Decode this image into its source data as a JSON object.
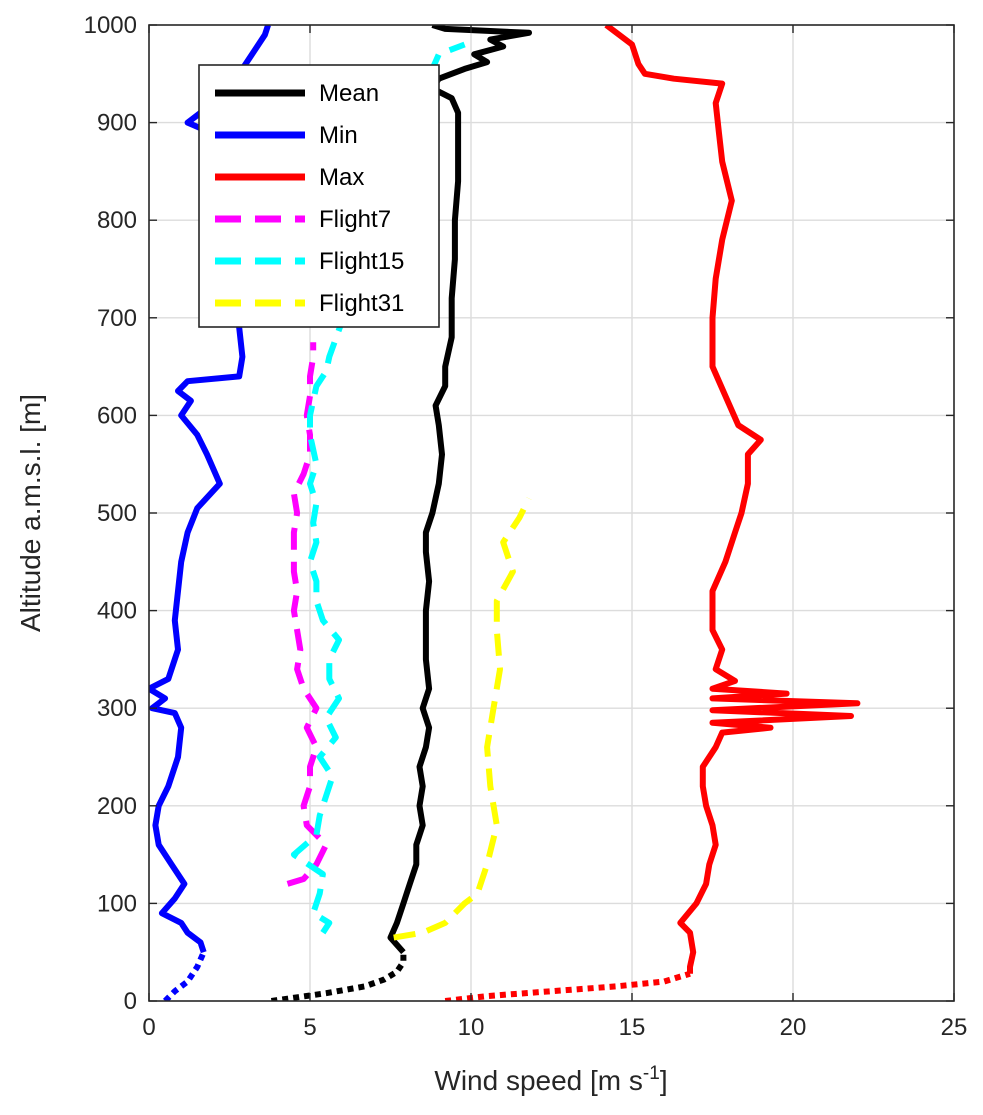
{
  "chart_data": {
    "type": "line",
    "xlabel": "Wind speed [m s",
    "xlabel_sup": "-1",
    "xlabel_end": "]",
    "ylabel": "Altitude a.m.s.l. [m]",
    "xlim": [
      0,
      25
    ],
    "ylim": [
      0,
      1000
    ],
    "xticks": [
      0,
      5,
      10,
      15,
      20,
      25
    ],
    "yticks": [
      0,
      100,
      200,
      300,
      400,
      500,
      600,
      700,
      800,
      900,
      1000
    ],
    "xtick_labels": [
      "0",
      "5",
      "10",
      "15",
      "20",
      "25"
    ],
    "ytick_labels": [
      "0",
      "100",
      "200",
      "300",
      "400",
      "500",
      "600",
      "700",
      "800",
      "900",
      "1000"
    ],
    "grid": true,
    "legend_position": "top-left",
    "series": [
      {
        "name": "Mean",
        "color": "#000000",
        "style": "solid",
        "near_ground_dotted": [
          [
            3.8,
            0
          ],
          [
            5.5,
            8
          ],
          [
            6.7,
            15
          ],
          [
            7.3,
            22
          ],
          [
            7.7,
            30
          ],
          [
            7.9,
            40
          ],
          [
            7.9,
            50
          ]
        ],
        "points": [
          [
            7.9,
            50
          ],
          [
            7.5,
            65
          ],
          [
            7.7,
            80
          ],
          [
            7.9,
            100
          ],
          [
            8.1,
            120
          ],
          [
            8.3,
            140
          ],
          [
            8.3,
            160
          ],
          [
            8.5,
            180
          ],
          [
            8.4,
            200
          ],
          [
            8.5,
            220
          ],
          [
            8.4,
            240
          ],
          [
            8.6,
            260
          ],
          [
            8.7,
            280
          ],
          [
            8.5,
            300
          ],
          [
            8.7,
            320
          ],
          [
            8.6,
            350
          ],
          [
            8.6,
            380
          ],
          [
            8.6,
            400
          ],
          [
            8.7,
            430
          ],
          [
            8.6,
            460
          ],
          [
            8.6,
            480
          ],
          [
            8.8,
            500
          ],
          [
            9.0,
            530
          ],
          [
            9.1,
            560
          ],
          [
            9.0,
            590
          ],
          [
            8.9,
            610
          ],
          [
            9.2,
            630
          ],
          [
            9.2,
            650
          ],
          [
            9.4,
            680
          ],
          [
            9.4,
            720
          ],
          [
            9.5,
            760
          ],
          [
            9.5,
            800
          ],
          [
            9.6,
            840
          ],
          [
            9.6,
            880
          ],
          [
            9.6,
            910
          ],
          [
            9.4,
            925
          ],
          [
            8.8,
            935
          ],
          [
            9.0,
            945
          ],
          [
            9.8,
            955
          ],
          [
            10.5,
            962
          ],
          [
            10.1,
            970
          ],
          [
            11.0,
            978
          ],
          [
            10.6,
            985
          ],
          [
            11.8,
            992
          ],
          [
            9.2,
            996
          ],
          [
            8.8,
            1000
          ]
        ]
      },
      {
        "name": "Min",
        "color": "#0000ff",
        "style": "solid",
        "near_ground_dotted": [
          [
            0.5,
            0
          ],
          [
            0.8,
            10
          ],
          [
            1.2,
            20
          ],
          [
            1.5,
            35
          ],
          [
            1.7,
            50
          ]
        ],
        "points": [
          [
            1.7,
            50
          ],
          [
            1.6,
            60
          ],
          [
            1.2,
            70
          ],
          [
            1.0,
            80
          ],
          [
            0.4,
            90
          ],
          [
            0.8,
            105
          ],
          [
            1.1,
            120
          ],
          [
            0.7,
            140
          ],
          [
            0.3,
            160
          ],
          [
            0.2,
            180
          ],
          [
            0.3,
            200
          ],
          [
            0.6,
            220
          ],
          [
            0.9,
            250
          ],
          [
            1.0,
            280
          ],
          [
            0.8,
            295
          ],
          [
            0.1,
            300
          ],
          [
            0.5,
            310
          ],
          [
            0.0,
            320
          ],
          [
            0.6,
            330
          ],
          [
            0.9,
            360
          ],
          [
            0.8,
            390
          ],
          [
            0.9,
            420
          ],
          [
            1.0,
            450
          ],
          [
            1.2,
            480
          ],
          [
            1.5,
            505
          ],
          [
            2.2,
            530
          ],
          [
            1.8,
            560
          ],
          [
            1.5,
            580
          ],
          [
            1.0,
            600
          ],
          [
            1.3,
            615
          ],
          [
            0.9,
            625
          ],
          [
            1.2,
            635
          ],
          [
            2.8,
            640
          ],
          [
            2.9,
            660
          ],
          [
            2.8,
            690
          ],
          [
            2.9,
            720
          ],
          [
            3.0,
            760
          ],
          [
            3.1,
            800
          ],
          [
            2.8,
            840
          ],
          [
            2.6,
            880
          ],
          [
            1.2,
            900
          ],
          [
            1.6,
            910
          ],
          [
            2.4,
            930
          ],
          [
            3.0,
            960
          ],
          [
            3.6,
            990
          ],
          [
            3.7,
            1000
          ]
        ]
      },
      {
        "name": "Max",
        "color": "#ff0000",
        "style": "solid",
        "near_ground_dotted": [
          [
            9.2,
            0
          ],
          [
            10.5,
            5
          ],
          [
            12.5,
            10
          ],
          [
            14.5,
            15
          ],
          [
            16.0,
            20
          ],
          [
            16.8,
            28
          ]
        ],
        "points": [
          [
            16.8,
            28
          ],
          [
            16.8,
            35
          ],
          [
            16.9,
            50
          ],
          [
            16.8,
            70
          ],
          [
            16.5,
            80
          ],
          [
            17.0,
            100
          ],
          [
            17.3,
            120
          ],
          [
            17.4,
            140
          ],
          [
            17.6,
            160
          ],
          [
            17.5,
            180
          ],
          [
            17.3,
            200
          ],
          [
            17.2,
            220
          ],
          [
            17.2,
            240
          ],
          [
            17.6,
            260
          ],
          [
            17.8,
            275
          ],
          [
            19.3,
            280
          ],
          [
            17.5,
            285
          ],
          [
            21.8,
            292
          ],
          [
            17.5,
            298
          ],
          [
            22.0,
            305
          ],
          [
            17.5,
            310
          ],
          [
            19.8,
            315
          ],
          [
            17.5,
            320
          ],
          [
            18.2,
            328
          ],
          [
            17.6,
            340
          ],
          [
            17.8,
            360
          ],
          [
            17.5,
            380
          ],
          [
            17.5,
            420
          ],
          [
            17.9,
            450
          ],
          [
            18.2,
            480
          ],
          [
            18.4,
            500
          ],
          [
            18.6,
            530
          ],
          [
            18.6,
            560
          ],
          [
            19.0,
            575
          ],
          [
            18.3,
            590
          ],
          [
            17.9,
            620
          ],
          [
            17.5,
            650
          ],
          [
            17.5,
            700
          ],
          [
            17.6,
            740
          ],
          [
            17.8,
            780
          ],
          [
            18.1,
            820
          ],
          [
            17.8,
            860
          ],
          [
            17.7,
            890
          ],
          [
            17.6,
            920
          ],
          [
            17.8,
            940
          ],
          [
            16.3,
            945
          ],
          [
            15.4,
            950
          ],
          [
            15.2,
            960
          ],
          [
            15.0,
            980
          ],
          [
            14.2,
            1000
          ]
        ]
      },
      {
        "name": "Flight7",
        "color": "#ff00ff",
        "style": "dashed",
        "points": [
          [
            4.3,
            120
          ],
          [
            4.8,
            125
          ],
          [
            5.2,
            140
          ],
          [
            5.5,
            160
          ],
          [
            4.9,
            180
          ],
          [
            4.8,
            200
          ],
          [
            5.0,
            220
          ],
          [
            5.0,
            240
          ],
          [
            5.2,
            260
          ],
          [
            4.9,
            280
          ],
          [
            5.2,
            300
          ],
          [
            4.8,
            320
          ],
          [
            4.6,
            340
          ],
          [
            4.7,
            360
          ],
          [
            4.6,
            380
          ],
          [
            4.5,
            400
          ],
          [
            4.6,
            420
          ],
          [
            4.5,
            440
          ],
          [
            4.5,
            460
          ],
          [
            4.5,
            480
          ],
          [
            4.6,
            500
          ],
          [
            4.5,
            520
          ],
          [
            4.8,
            540
          ],
          [
            5.0,
            560
          ],
          [
            5.0,
            580
          ],
          [
            4.9,
            600
          ],
          [
            5.0,
            620
          ],
          [
            5.0,
            640
          ],
          [
            5.1,
            660
          ],
          [
            5.1,
            675
          ]
        ]
      },
      {
        "name": "Flight15",
        "color": "#00ffff",
        "style": "dashed",
        "points": [
          [
            5.4,
            70
          ],
          [
            5.6,
            80
          ],
          [
            5.1,
            90
          ],
          [
            5.3,
            110
          ],
          [
            5.4,
            130
          ],
          [
            4.5,
            150
          ],
          [
            5.2,
            170
          ],
          [
            5.3,
            190
          ],
          [
            5.5,
            210
          ],
          [
            5.7,
            230
          ],
          [
            5.3,
            250
          ],
          [
            5.8,
            270
          ],
          [
            5.5,
            290
          ],
          [
            5.9,
            310
          ],
          [
            5.6,
            330
          ],
          [
            5.6,
            350
          ],
          [
            5.9,
            370
          ],
          [
            5.4,
            390
          ],
          [
            5.2,
            410
          ],
          [
            5.2,
            430
          ],
          [
            5.0,
            450
          ],
          [
            5.2,
            470
          ],
          [
            5.1,
            490
          ],
          [
            5.2,
            510
          ],
          [
            5.0,
            530
          ],
          [
            5.2,
            550
          ],
          [
            5.0,
            580
          ],
          [
            5.0,
            600
          ],
          [
            5.2,
            630
          ],
          [
            5.5,
            645
          ],
          [
            5.6,
            660
          ],
          [
            8.8,
            955
          ],
          [
            9.0,
            970
          ],
          [
            9.8,
            980
          ]
        ]
      },
      {
        "name": "Flight31",
        "color": "#ffff00",
        "style": "dashed",
        "points": [
          [
            7.6,
            65
          ],
          [
            8.5,
            70
          ],
          [
            9.2,
            80
          ],
          [
            9.8,
            100
          ],
          [
            10.2,
            110
          ],
          [
            10.5,
            140
          ],
          [
            10.8,
            180
          ],
          [
            10.6,
            220
          ],
          [
            10.5,
            260
          ],
          [
            10.7,
            300
          ],
          [
            10.9,
            340
          ],
          [
            10.8,
            380
          ],
          [
            10.8,
            410
          ],
          [
            11.3,
            440
          ],
          [
            11.0,
            470
          ],
          [
            11.5,
            495
          ],
          [
            11.8,
            515
          ]
        ]
      }
    ]
  }
}
